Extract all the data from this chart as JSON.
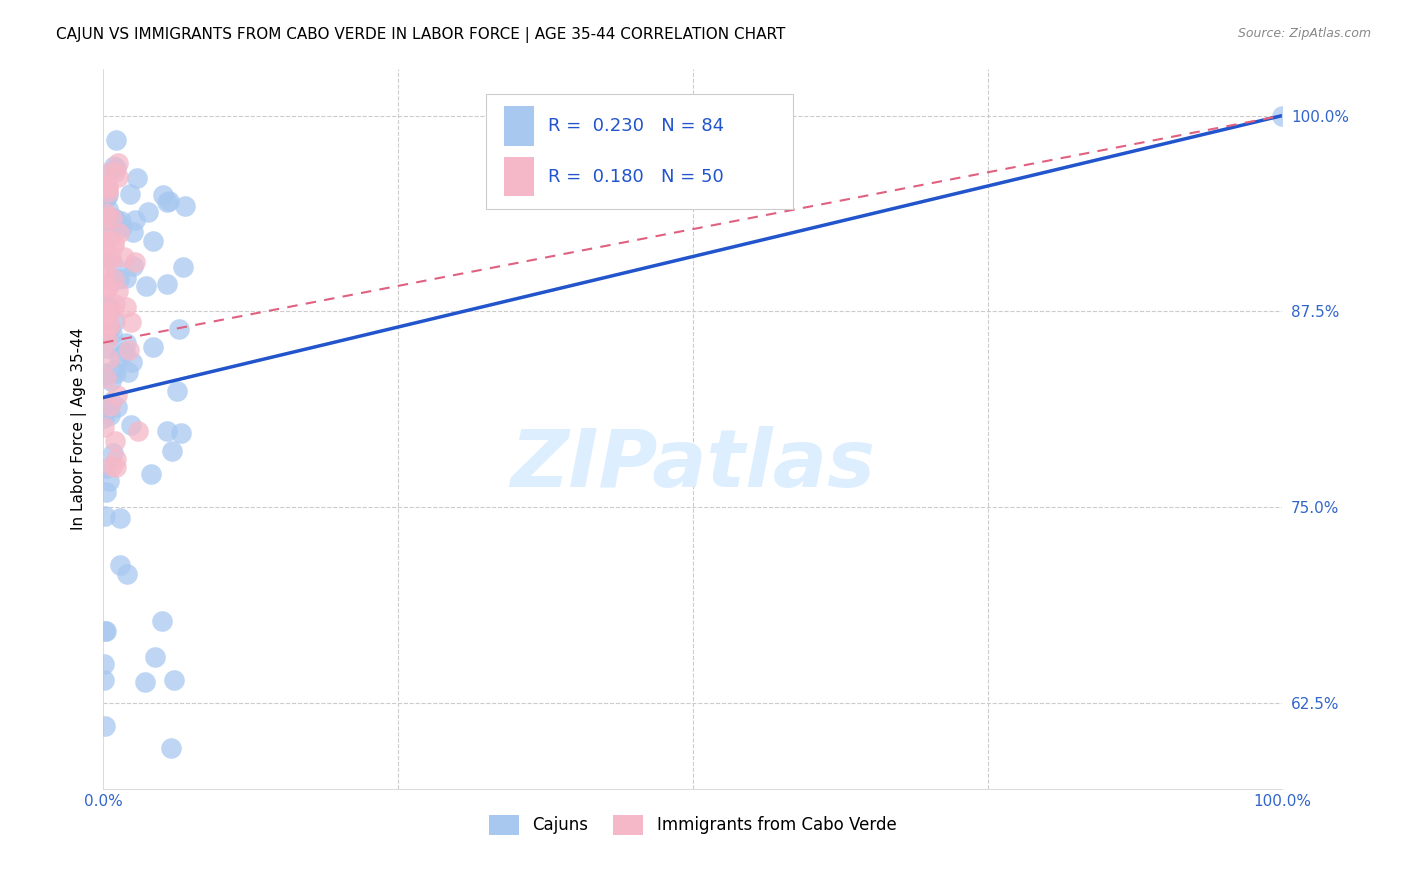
{
  "title": "CAJUN VS IMMIGRANTS FROM CABO VERDE IN LABOR FORCE | AGE 35-44 CORRELATION CHART",
  "source": "Source: ZipAtlas.com",
  "ylabel": "In Labor Force | Age 35-44",
  "legend_r1": "R = 0.230",
  "legend_n1": "N = 84",
  "legend_r2": "R = 0.180",
  "legend_n2": "N = 50",
  "cajun_color": "#a8c8f0",
  "cabo_verde_color": "#f5b8c8",
  "cajun_line_color": "#2255cc",
  "cabo_verde_line_color": "#e06080",
  "watermark_color": "#ddeeff",
  "background_color": "#ffffff",
  "grid_color": "#cccccc",
  "xlim": [
    0.0,
    1.0
  ],
  "ylim": [
    0.57,
    1.03
  ],
  "yticks": [
    0.625,
    0.75,
    0.875,
    1.0
  ],
  "ytick_labels": [
    "62.5%",
    "75.0%",
    "87.5%",
    "100.0%"
  ],
  "xticks": [
    0.0,
    0.25,
    0.5,
    0.75,
    1.0
  ],
  "xtick_labels": [
    "0.0%",
    "",
    "",
    "",
    "100.0%"
  ],
  "title_fontsize": 11,
  "axis_label_fontsize": 11,
  "tick_fontsize": 11
}
